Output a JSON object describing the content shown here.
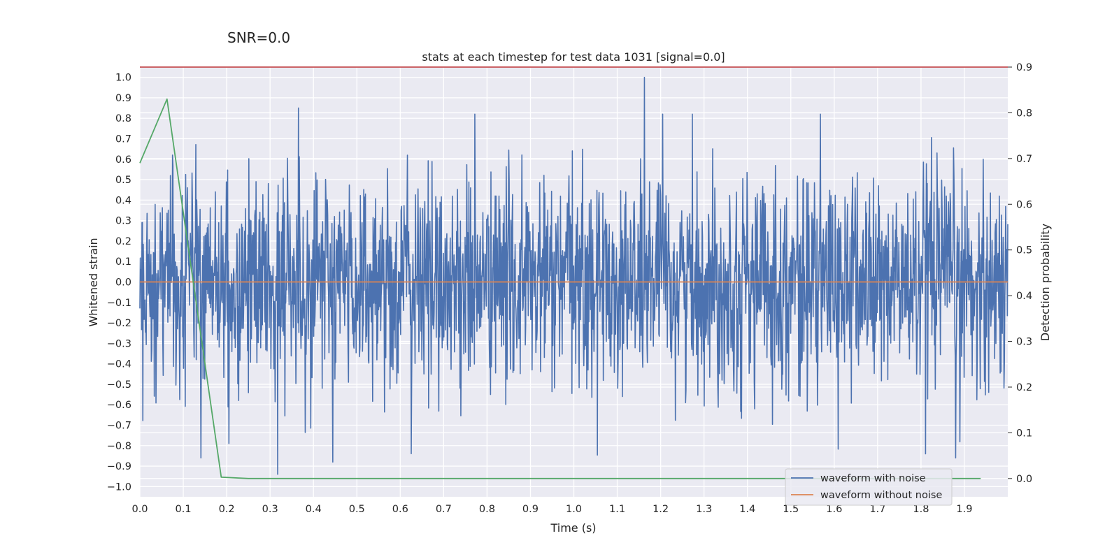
{
  "suptitle": "SNR=0.0",
  "chart_data": {
    "type": "line",
    "title": "stats at each timestep for test data 1031 [signal=0.0]",
    "xlabel": "Time (s)",
    "ylabel": "Whitened strain",
    "y2label": "Detection probability",
    "xlim": [
      0.0,
      2.0
    ],
    "ylim": [
      -1.05,
      1.05
    ],
    "y2lim": [
      -0.04,
      0.9
    ],
    "x_ticks": [
      0.0,
      0.1,
      0.2,
      0.3,
      0.4,
      0.5,
      0.6,
      0.7,
      0.8,
      0.9,
      1.0,
      1.1,
      1.2,
      1.3,
      1.4,
      1.5,
      1.6,
      1.7,
      1.8,
      1.9
    ],
    "x_tick_labels": [
      "0.0",
      "0.1",
      "0.2",
      "0.3",
      "0.4",
      "0.5",
      "0.6",
      "0.7",
      "0.8",
      "0.9",
      "1.0",
      "1.1",
      "1.2",
      "1.3",
      "1.4",
      "1.5",
      "1.6",
      "1.7",
      "1.8",
      "1.9"
    ],
    "y_ticks": [
      1.0,
      0.9,
      0.8,
      0.7,
      0.6,
      0.5,
      0.4,
      0.3,
      0.2,
      0.1,
      0.0,
      -0.1,
      -0.2,
      -0.3,
      -0.4,
      -0.5,
      -0.6,
      -0.7,
      -0.8,
      -0.9,
      -1.0
    ],
    "y_tick_labels": [
      "1.0",
      "0.9",
      "0.8",
      "0.7",
      "0.6",
      "0.5",
      "0.4",
      "0.3",
      "0.2",
      "0.1",
      "0.0",
      "−0.1",
      "−0.2",
      "−0.3",
      "−0.4",
      "−0.5",
      "−0.6",
      "−0.7",
      "−0.8",
      "−0.9",
      "−1.0"
    ],
    "y2_ticks": [
      0.9,
      0.8,
      0.7,
      0.6,
      0.5,
      0.4,
      0.3,
      0.2,
      0.1,
      0.0
    ],
    "y2_tick_labels": [
      "0.9",
      "0.8",
      "0.7",
      "0.6",
      "0.5",
      "0.4",
      "0.3",
      "0.2",
      "0.1",
      "0.0"
    ],
    "grid": true,
    "legend_position": "bottom-right",
    "series": [
      {
        "name": "waveform with noise",
        "axis": "left",
        "color": "#4c72b0",
        "style": "dense noise",
        "x_range": [
          0.0,
          2.0
        ],
        "min": -0.94,
        "max": 1.0,
        "num_points": 2048,
        "peaks": [
          {
            "x": 1.163,
            "y": 1.0
          },
          {
            "x": 0.365,
            "y": 0.85
          },
          {
            "x": 0.318,
            "y": -0.94
          },
          {
            "x": 0.445,
            "y": -0.88
          },
          {
            "x": 0.141,
            "y": -0.86
          },
          {
            "x": 1.81,
            "y": -0.84
          },
          {
            "x": 1.88,
            "y": -0.86
          }
        ]
      },
      {
        "name": "waveform without noise",
        "axis": "left",
        "color": "#dd8452",
        "x": [
          0.0,
          2.0
        ],
        "y": [
          0.0,
          0.0
        ]
      },
      {
        "name": "",
        "axis": "right",
        "color": "#55a868",
        "x": [
          0.0,
          0.0625,
          0.1875,
          0.25,
          0.3125,
          0.375,
          0.5,
          1.0,
          1.5,
          1.9375
        ],
        "y": [
          0.69,
          0.83,
          0.003,
          0.0,
          0.0,
          0.0,
          0.0,
          0.0,
          0.0,
          0.0
        ]
      }
    ],
    "hlines": [
      {
        "axis": "right",
        "y": 0.9,
        "color": "#c44e52"
      }
    ]
  }
}
